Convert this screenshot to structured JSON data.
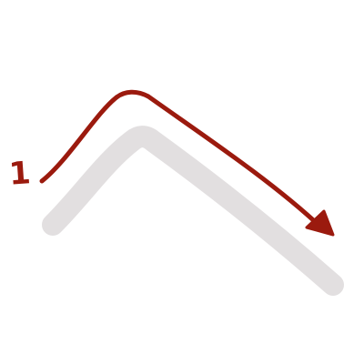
{
  "colors": {
    "guide_stroke": "#e2dfe0",
    "arrow": "#9b1a0e"
  },
  "step": {
    "number": "1"
  }
}
